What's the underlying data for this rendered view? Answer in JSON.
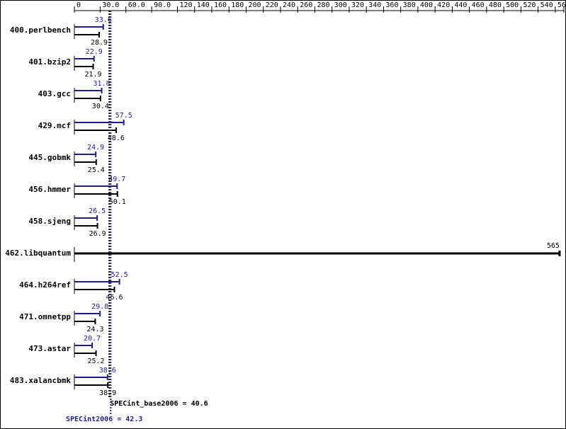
{
  "chart_data": {
    "type": "hbar",
    "categories": [
      "400.perlbench",
      "401.bzip2",
      "403.gcc",
      "429.mcf",
      "445.gobmk",
      "456.hmmer",
      "458.sjeng",
      "462.libquantum",
      "464.h264ref",
      "471.omnetpp",
      "473.astar",
      "483.xalancbmk"
    ],
    "series": [
      {
        "color": "#1e1e8c",
        "values": [
          33.6,
          22.9,
          31.8,
          57.5,
          24.9,
          49.7,
          26.5,
          null,
          52.5,
          29.8,
          20.7,
          38.6
        ]
      },
      {
        "color": "#000000",
        "values": [
          28.9,
          21.9,
          30.4,
          48.6,
          25.4,
          50.1,
          26.9,
          565,
          46.6,
          24.3,
          25.2,
          38.9
        ]
      }
    ],
    "xlim": [
      0,
      570
    ],
    "xticks": [
      0,
      {
        "value": 30,
        "label": "30.0"
      },
      {
        "value": 60,
        "label": "60.0"
      },
      {
        "value": 90,
        "label": "90.0"
      },
      120,
      140,
      160,
      180,
      200,
      220,
      240,
      260,
      280,
      300,
      320,
      340,
      360,
      380,
      400,
      420,
      440,
      460,
      480,
      500,
      520,
      540,
      560,
      570
    ],
    "reference_lines": [
      {
        "label": "SPECint_base2006 = 40.6",
        "value": 40.6,
        "color": "#000000"
      },
      {
        "label": "SPECint2006 = 42.3",
        "value": 42.3,
        "color": "#1e1e8c"
      }
    ]
  }
}
